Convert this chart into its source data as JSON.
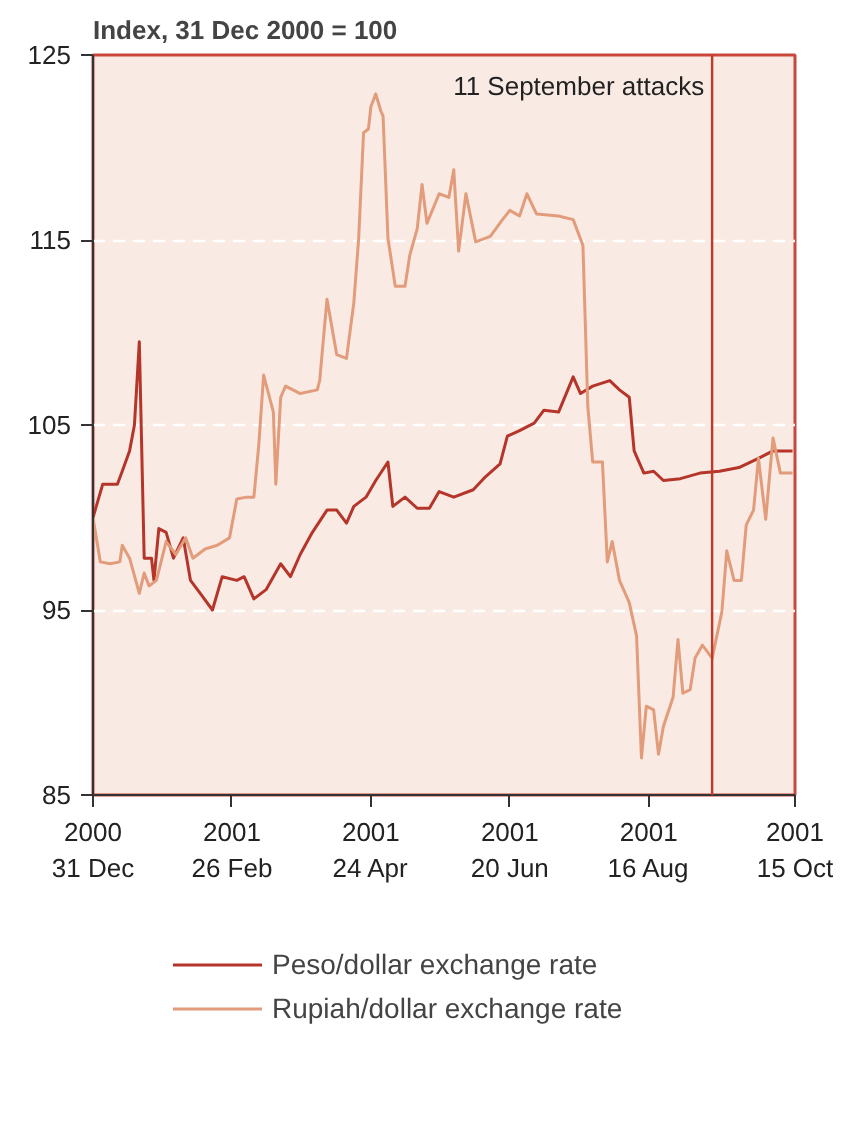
{
  "chart_data": {
    "type": "line",
    "title": "Index, 31 Dec 2000 = 100",
    "xlim": [
      "2000-12-31",
      "2001-10-15"
    ],
    "xticks": [
      {
        "value": "2000-12-31",
        "label": "2000\n31 Dec"
      },
      {
        "value": "2001-02-26",
        "label": "2001\n26 Feb"
      },
      {
        "value": "2001-04-24",
        "label": "2001\n24 Apr"
      },
      {
        "value": "2001-06-20",
        "label": "2001\n20 Jun"
      },
      {
        "value": "2001-08-16",
        "label": "2001\n16 Aug"
      },
      {
        "value": "2001-10-15",
        "label": "2001\n15 Oct"
      }
    ],
    "ylim": [
      85,
      125
    ],
    "yticks": [
      85,
      95,
      105,
      115,
      125
    ],
    "grid": "y",
    "legend": "bottom",
    "ref_lines": [
      {
        "axis": "x",
        "value": "2001-09-11",
        "label": "11 September attacks",
        "color": "#c0392b"
      }
    ],
    "series": [
      {
        "name": "Peso/dollar exchange rate",
        "color": "#b5352b",
        "x": [
          "2000-12-31",
          "2001-01-04",
          "2001-01-10",
          "2001-01-12",
          "2001-01-15",
          "2001-01-17",
          "2001-01-19",
          "2001-01-21",
          "2001-01-24",
          "2001-01-25",
          "2001-01-27",
          "2001-01-30",
          "2001-02-02",
          "2001-02-06",
          "2001-02-09",
          "2001-02-13",
          "2001-02-18",
          "2001-02-22",
          "2001-02-28",
          "2001-03-03",
          "2001-03-07",
          "2001-03-12",
          "2001-03-18",
          "2001-03-22",
          "2001-03-26",
          "2001-03-31",
          "2001-04-06",
          "2001-04-10",
          "2001-04-14",
          "2001-04-17",
          "2001-04-22",
          "2001-04-26",
          "2001-05-01",
          "2001-05-03",
          "2001-05-08",
          "2001-05-13",
          "2001-05-18",
          "2001-05-22",
          "2001-05-28",
          "2001-06-05",
          "2001-06-10",
          "2001-06-16",
          "2001-06-19",
          "2001-06-24",
          "2001-06-30",
          "2001-07-04",
          "2001-07-10",
          "2001-07-16",
          "2001-07-19",
          "2001-07-24",
          "2001-07-31",
          "2001-08-04",
          "2001-08-08",
          "2001-08-10",
          "2001-08-14",
          "2001-08-18",
          "2001-08-22",
          "2001-08-29",
          "2001-09-06",
          "2001-09-14",
          "2001-09-22",
          "2001-09-30",
          "2001-10-06",
          "2001-10-14"
        ],
        "values": [
          100,
          101.8,
          101.8,
          102.5,
          103.6,
          105,
          109.5,
          97.8,
          97.8,
          96.6,
          99.4,
          99.2,
          97.8,
          98.9,
          96.6,
          95.9,
          95,
          96.8,
          96.6,
          96.8,
          95.6,
          96.1,
          97.5,
          96.8,
          98,
          99.2,
          100.4,
          100.4,
          99.7,
          100.6,
          101.1,
          102,
          103,
          100.6,
          101.1,
          100.5,
          100.5,
          101.4,
          101.1,
          101.5,
          102.2,
          102.9,
          104.4,
          104.7,
          105.1,
          105.8,
          105.7,
          107.6,
          106.7,
          107.1,
          107.4,
          106.9,
          106.5,
          103.6,
          102.4,
          102.5,
          102,
          102.1,
          102.4,
          102.5,
          102.7,
          103.2,
          103.6,
          103.6
        ]
      },
      {
        "name": "Rupiah/dollar exchange rate",
        "color": "#e29c7b",
        "x": [
          "2000-12-31",
          "2001-01-03",
          "2001-01-07",
          "2001-01-11",
          "2001-01-12",
          "2001-01-15",
          "2001-01-19",
          "2001-01-21",
          "2001-01-23",
          "2001-01-26",
          "2001-01-30",
          "2001-02-03",
          "2001-02-07",
          "2001-02-10",
          "2001-02-15",
          "2001-02-20",
          "2001-02-25",
          "2001-02-28",
          "2001-03-04",
          "2001-03-07",
          "2001-03-09",
          "2001-03-11",
          "2001-03-15",
          "2001-03-16",
          "2001-03-18",
          "2001-03-20",
          "2001-03-26",
          "2001-04-02",
          "2001-04-03",
          "2001-04-06",
          "2001-04-10",
          "2001-04-14",
          "2001-04-17",
          "2001-04-19",
          "2001-04-21",
          "2001-04-23",
          "2001-04-24",
          "2001-04-26",
          "2001-04-28",
          "2001-04-29",
          "2001-05-01",
          "2001-05-04",
          "2001-05-08",
          "2001-05-10",
          "2001-05-13",
          "2001-05-15",
          "2001-05-17",
          "2001-05-22",
          "2001-05-26",
          "2001-05-28",
          "2001-05-30",
          "2001-06-02",
          "2001-06-06",
          "2001-06-12",
          "2001-06-17",
          "2001-06-20",
          "2001-06-24",
          "2001-06-27",
          "2001-07-01",
          "2001-07-10",
          "2001-07-16",
          "2001-07-20",
          "2001-07-22",
          "2001-07-24",
          "2001-07-28",
          "2001-07-30",
          "2001-08-01",
          "2001-08-04",
          "2001-08-08",
          "2001-08-11",
          "2001-08-13",
          "2001-08-15",
          "2001-08-18",
          "2001-08-20",
          "2001-08-22",
          "2001-08-26",
          "2001-08-28",
          "2001-08-30",
          "2001-09-02",
          "2001-09-04",
          "2001-09-07",
          "2001-09-11",
          "2001-09-15",
          "2001-09-17",
          "2001-09-20",
          "2001-09-23",
          "2001-09-25",
          "2001-09-28",
          "2001-09-30",
          "2001-10-03",
          "2001-10-05",
          "2001-10-06",
          "2001-10-09",
          "2001-10-14"
        ],
        "values": [
          100,
          97.6,
          97.5,
          97.6,
          98.5,
          97.8,
          95.9,
          97,
          96.3,
          96.6,
          98.7,
          98,
          98.9,
          97.8,
          98.3,
          98.5,
          98.9,
          101,
          101.1,
          101.1,
          103.9,
          107.7,
          105.7,
          101.8,
          106.5,
          107.1,
          106.7,
          106.9,
          107.4,
          111.8,
          108.8,
          108.6,
          111.6,
          115.1,
          120.8,
          121,
          122.2,
          122.9,
          122,
          121.7,
          115.1,
          112.5,
          112.5,
          114.2,
          115.6,
          118,
          115.9,
          117.5,
          117.3,
          118.8,
          114.4,
          117.5,
          114.9,
          115.2,
          116.1,
          116.6,
          116.3,
          117.5,
          116.4,
          116.3,
          116.1,
          114.7,
          106,
          103,
          103,
          97.6,
          98.7,
          96.6,
          95.4,
          93.6,
          87,
          89.8,
          89.6,
          87.2,
          88.7,
          90.3,
          93.4,
          90.5,
          90.7,
          92.4,
          93.1,
          92.4,
          94.9,
          98.2,
          96.6,
          96.6,
          99.6,
          100.4,
          103.2,
          99.9,
          102.9,
          104.3,
          102.4,
          102.4
        ]
      }
    ]
  }
}
